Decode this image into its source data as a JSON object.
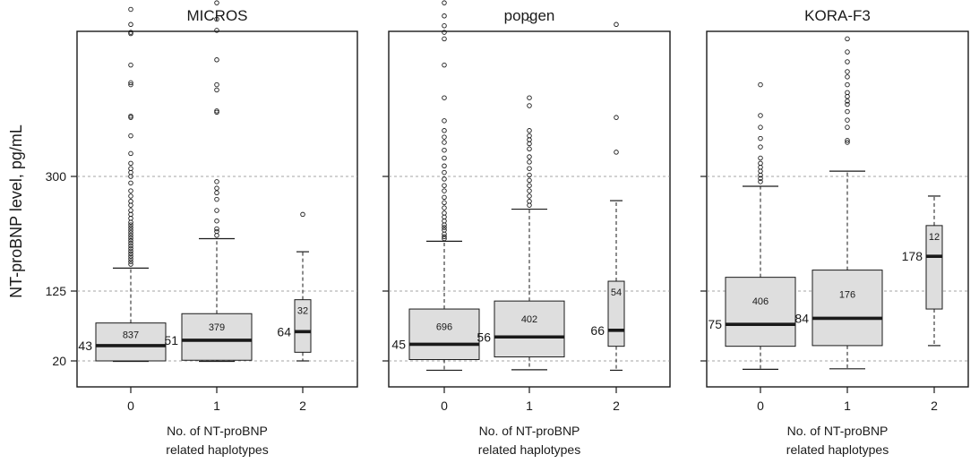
{
  "figure": {
    "ylabel": "NT-proBNP level, pg/mL",
    "xlabel_lines": [
      "No. of NT-proBNP",
      "related haplotypes"
    ],
    "yticks": [
      20,
      125,
      300
    ],
    "xticks": [
      "0",
      "1",
      "2"
    ]
  },
  "colors": {
    "box_fill": "#dedede",
    "line": "#1a1a1a",
    "grid": "#888888",
    "background": "#ffffff"
  },
  "chart_data": [
    {
      "type": "box",
      "title": "MICROS",
      "categories": [
        "0",
        "1",
        "2"
      ],
      "y_ticks": [
        20,
        125,
        300
      ],
      "grid_lines_y": [
        20,
        125,
        300
      ],
      "boxes": [
        {
          "x": "0",
          "n": 837,
          "median": 43,
          "q1": 20,
          "q3": 77,
          "whisker_low": 19,
          "whisker_high": 160,
          "outliers": [
            166,
            170,
            174,
            178,
            182,
            186,
            190,
            194,
            198,
            202,
            206,
            210,
            214,
            218,
            222,
            226,
            230,
            236,
            242,
            248,
            256,
            262,
            270,
            278,
            290,
            300,
            306,
            312,
            320,
            335,
            362,
            390,
            392,
            440,
            443,
            470,
            518,
            520,
            532,
            555
          ]
        },
        {
          "x": "1",
          "n": 379,
          "median": 51,
          "q1": 21,
          "q3": 91,
          "whisker_low": 19,
          "whisker_high": 205,
          "outliers": [
            210,
            216,
            220,
            232,
            248,
            265,
            275,
            282,
            292,
            398,
            400,
            432,
            440,
            478,
            523,
            540,
            565
          ]
        },
        {
          "x": "2",
          "n": 32,
          "median": 64,
          "q1": 33,
          "q3": 112,
          "whisker_low": 20,
          "whisker_high": 185,
          "outliers": [
            242
          ]
        }
      ]
    },
    {
      "type": "box",
      "title": "popgen",
      "categories": [
        "0",
        "1",
        "2"
      ],
      "y_ticks": [
        20,
        125,
        300
      ],
      "grid_lines_y": [
        20,
        125,
        300
      ],
      "boxes": [
        {
          "x": "0",
          "n": 696,
          "median": 45,
          "q1": 22,
          "q3": 98,
          "whisker_low": 1,
          "whisker_high": 201,
          "outliers": [
            205,
            208,
            212,
            218,
            222,
            226,
            232,
            238,
            244,
            252,
            260,
            268,
            278,
            286,
            296,
            306,
            316,
            328,
            340,
            352,
            360,
            370,
            385,
            420,
            470,
            510,
            520,
            530,
            545,
            565
          ]
        },
        {
          "x": "1",
          "n": 402,
          "median": 56,
          "q1": 26,
          "q3": 110,
          "whisker_low": 2,
          "whisker_high": 250,
          "outliers": [
            256,
            262,
            270,
            278,
            286,
            294,
            302,
            312,
            322,
            330,
            342,
            350,
            356,
            362,
            370,
            408,
            420,
            540
          ]
        },
        {
          "x": "2",
          "n": 54,
          "median": 66,
          "q1": 42,
          "q3": 140,
          "whisker_low": 1,
          "whisker_high": 263,
          "outliers": [
            337,
            390,
            532
          ]
        }
      ]
    },
    {
      "type": "box",
      "title": "KORA-F3",
      "categories": [
        "0",
        "1",
        "2"
      ],
      "y_ticks": [
        20,
        125,
        300
      ],
      "grid_lines_y": [
        20,
        125,
        300
      ],
      "boxes": [
        {
          "x": "0",
          "n": 406,
          "median": 75,
          "q1": 42,
          "q3": 146,
          "whisker_low": 3,
          "whisker_high": 285,
          "outliers": [
            292,
            297,
            302,
            308,
            314,
            320,
            328,
            345,
            358,
            375,
            393,
            440
          ]
        },
        {
          "x": "1",
          "n": 176,
          "median": 84,
          "q1": 43,
          "q3": 157,
          "whisker_low": 4,
          "whisker_high": 308,
          "outliers": [
            352,
            355,
            375,
            386,
            399,
            410,
            415,
            422,
            428,
            440,
            452,
            460,
            475,
            490,
            510
          ]
        },
        {
          "x": "2",
          "n": 12,
          "median": 178,
          "q1": 98,
          "q3": 225,
          "whisker_low": 43,
          "whisker_high": 270,
          "outliers": []
        }
      ]
    }
  ]
}
